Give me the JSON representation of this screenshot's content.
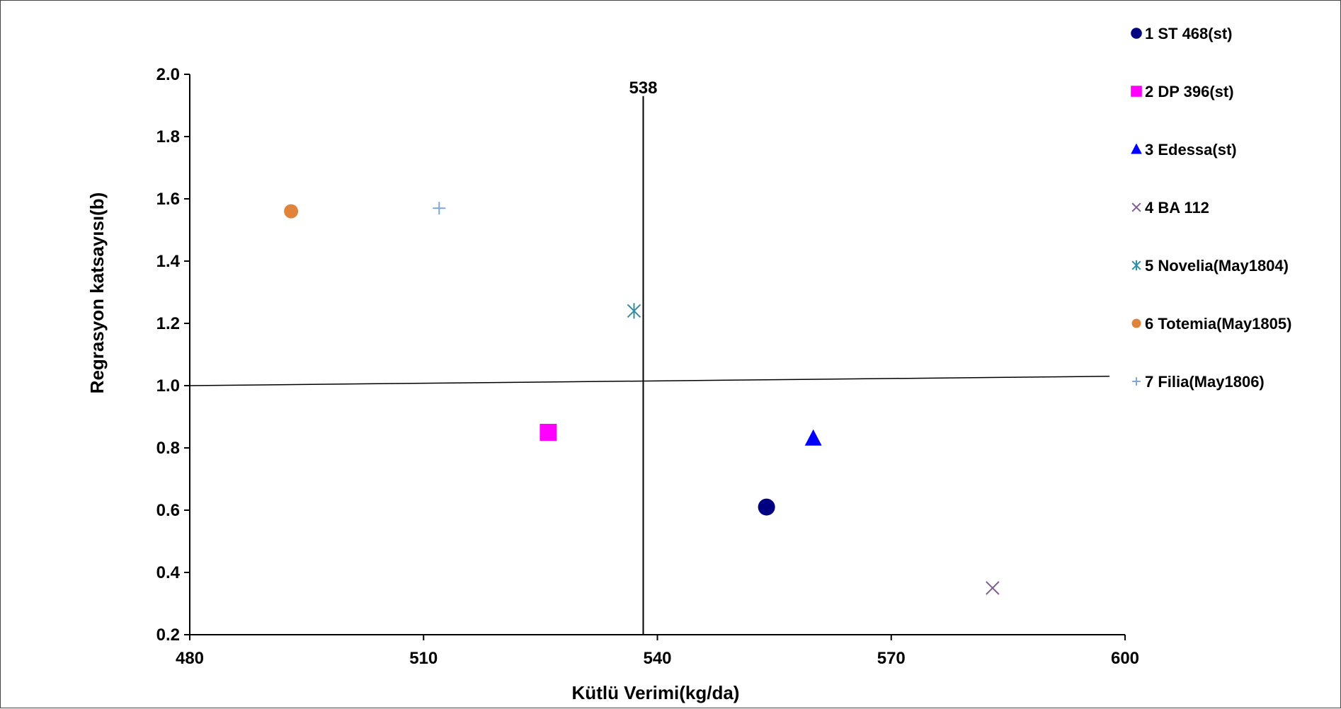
{
  "chart_data": {
    "type": "scatter",
    "title": "",
    "xlabel": "Kütlü Verimi(kg/da)",
    "ylabel": "Regrasyon katsayısı(b)",
    "xlim": [
      480,
      600
    ],
    "ylim": [
      0.2,
      2.0
    ],
    "xticks": [
      "480",
      "510",
      "540",
      "570",
      "600"
    ],
    "yticks": [
      "0.2",
      "0.4",
      "0.6",
      "0.8",
      "1.0",
      "1.2",
      "1.4",
      "1.6",
      "1.8",
      "2.0"
    ],
    "grid": false,
    "legend_position": "right",
    "reference_lines": {
      "vertical": {
        "x": 538,
        "label": "538"
      },
      "horizontal": {
        "x": [
          480,
          598
        ],
        "y": [
          1.0,
          1.03
        ]
      }
    },
    "series": [
      {
        "name": "1 ST 468(st)",
        "marker": "circle",
        "color": "#000080",
        "x": 554,
        "y": 0.61
      },
      {
        "name": "2 DP 396(st)",
        "marker": "square",
        "color": "#FF00FF",
        "x": 526,
        "y": 0.85
      },
      {
        "name": "3 Edessa(st)",
        "marker": "triangle",
        "color": "#0000FF",
        "x": 560,
        "y": 0.83
      },
      {
        "name": "4 BA 112",
        "marker": "x",
        "color": "#7F5F8F",
        "x": 583,
        "y": 0.35
      },
      {
        "name": "5 Novelia(May1804)",
        "marker": "star",
        "color": "#2E8FA8",
        "x": 537,
        "y": 1.24
      },
      {
        "name": "6 Totemia(May1805)",
        "marker": "circle-small",
        "color": "#E0843C",
        "x": 493,
        "y": 1.56
      },
      {
        "name": "7 Filia(May1806)",
        "marker": "plus",
        "color": "#7FA7D9",
        "x": 512,
        "y": 1.57
      }
    ]
  }
}
